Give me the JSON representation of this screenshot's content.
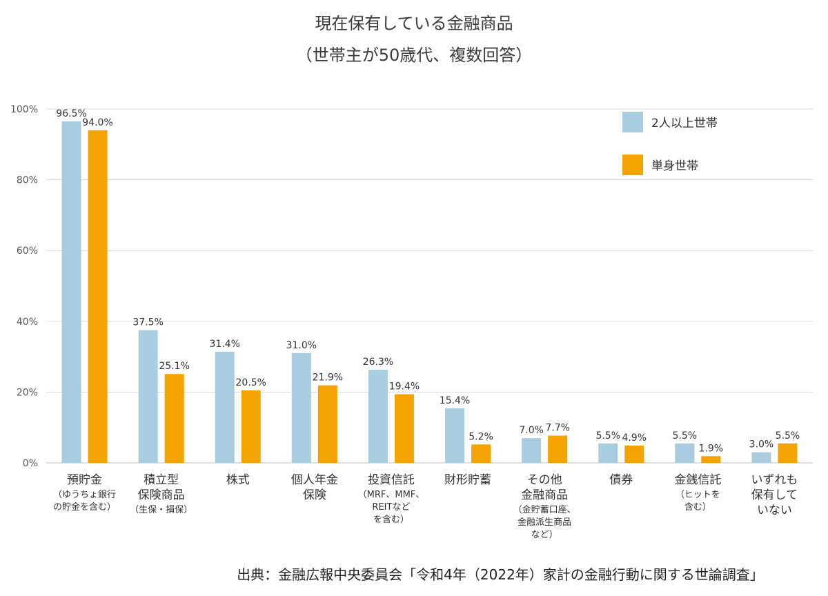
{
  "title_line1": "現在保有している金融商品",
  "title_line2": "（世帯主が50歳代、複数回答）",
  "source": "出典：金融広報中央委員会「令和4年（2022年）家計の金融行動に関する世論調査」",
  "colors": {
    "multi": "#a9cde0",
    "single": "#f5a300",
    "grid": "#d9d9d9",
    "axis": "#bfbfbf"
  },
  "chart_data": {
    "type": "bar",
    "categories": [
      {
        "label": [
          "預貯金"
        ],
        "note": [
          "（ゆうちょ銀行",
          "の貯金を含む）"
        ]
      },
      {
        "label": [
          "積立型",
          "保険商品"
        ],
        "note": [
          "（生保・損保）"
        ]
      },
      {
        "label": [
          "株式"
        ],
        "note": []
      },
      {
        "label": [
          "個人年金",
          "保険"
        ],
        "note": []
      },
      {
        "label": [
          "投資信託"
        ],
        "note": [
          "（MRF、MMF、",
          "REITなど",
          "を含む）"
        ]
      },
      {
        "label": [
          "財形貯蓄"
        ],
        "note": []
      },
      {
        "label": [
          "その他",
          "金融商品"
        ],
        "note": [
          "（金貯蓄口座、",
          "金融派生商品",
          "など）"
        ]
      },
      {
        "label": [
          "債券"
        ],
        "note": []
      },
      {
        "label": [
          "金銭信託"
        ],
        "note": [
          "（ヒットを",
          "含む）"
        ]
      },
      {
        "label": [
          "いずれも",
          "保有して",
          "いない"
        ],
        "note": []
      }
    ],
    "series": [
      {
        "name": "2人以上世帯",
        "values": [
          96.5,
          37.5,
          31.4,
          31.0,
          26.3,
          15.4,
          7.0,
          5.5,
          5.5,
          3.0
        ],
        "labels": [
          "96.5%",
          "37.5%",
          "31.4%",
          "31.0%",
          "26.3%",
          "15.4%",
          "7.0%",
          "5.5%",
          "5.5%",
          "3.0%"
        ]
      },
      {
        "name": "単身世帯",
        "values": [
          94.0,
          25.1,
          20.5,
          21.9,
          19.4,
          5.2,
          7.7,
          4.9,
          1.9,
          5.5
        ],
        "labels": [
          "94.0%",
          "25.1%",
          "20.5%",
          "21.9%",
          "19.4%",
          "5.2%",
          "7.7%",
          "4.9%",
          "1.9%",
          "5.5%"
        ]
      }
    ],
    "yticks": [
      0,
      20,
      40,
      60,
      80,
      100
    ],
    "ytick_labels": [
      "0%",
      "20%",
      "40%",
      "60%",
      "80%",
      "100%"
    ],
    "ylim": [
      0,
      100
    ],
    "grid": true,
    "legend_position": "top-right"
  }
}
